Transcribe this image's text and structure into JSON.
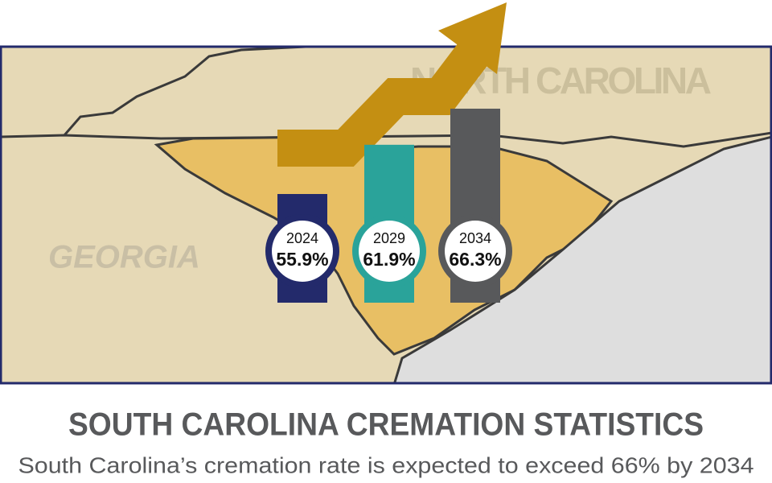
{
  "chart_data": {
    "type": "bar",
    "title": "SOUTH CAROLINA CREMATION STATISTICS",
    "subtitle": "South Carolina’s cremation rate is expected to exceed 66% by 2034",
    "map_labels": [
      "GEORGIA",
      "NORTH CAROLINA"
    ],
    "categories": [
      "2024",
      "2029",
      "2034"
    ],
    "values": [
      55.9,
      61.9,
      66.3
    ],
    "value_labels": [
      "55.9%",
      "61.9%",
      "66.3%"
    ],
    "colors": [
      "#232a6b",
      "#2aa39a",
      "#58595b"
    ],
    "arrow_color": "#c48f12"
  }
}
